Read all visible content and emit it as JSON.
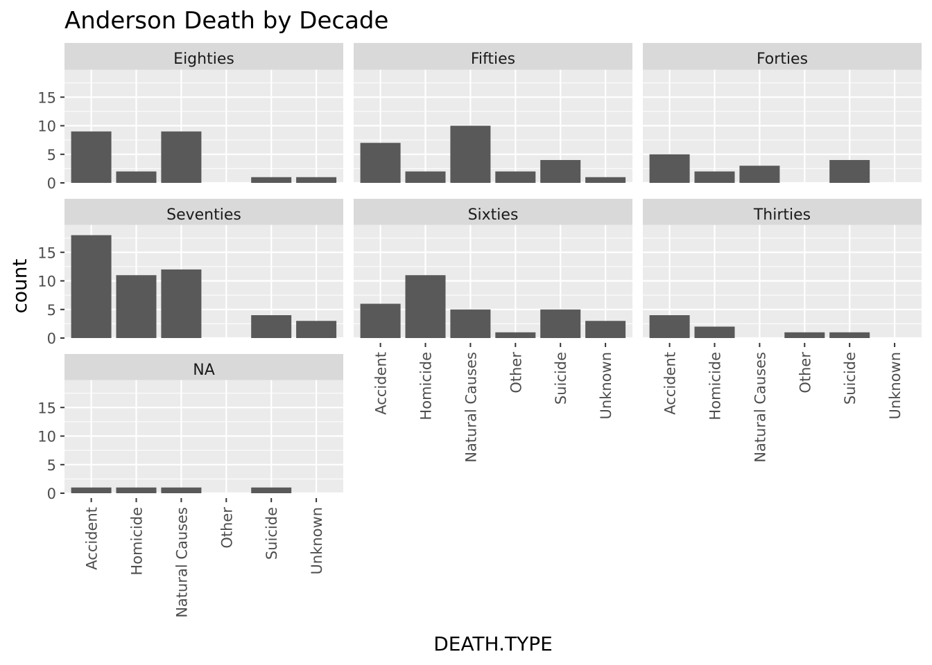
{
  "chart_data": {
    "type": "bar",
    "title": "Anderson Death by Decade",
    "xlabel": "DEATH.TYPE",
    "ylabel": "count",
    "categories": [
      "Accident",
      "Homicide",
      "Natural Causes",
      "Other",
      "Suicide",
      "Unknown"
    ],
    "y_ticks": [
      "0",
      "5",
      "10",
      "15"
    ],
    "ylim": [
      0,
      19.8
    ],
    "grid": true,
    "facets": [
      {
        "name": "Eighties",
        "values": [
          9,
          2,
          9,
          0,
          1,
          1
        ]
      },
      {
        "name": "Fifties",
        "values": [
          7,
          2,
          10,
          2,
          4,
          1
        ]
      },
      {
        "name": "Forties",
        "values": [
          5,
          2,
          3,
          0,
          4,
          0
        ]
      },
      {
        "name": "Seventies",
        "values": [
          18,
          11,
          12,
          0,
          4,
          3
        ]
      },
      {
        "name": "Sixties",
        "values": [
          6,
          11,
          5,
          1,
          5,
          3
        ]
      },
      {
        "name": "Thirties",
        "values": [
          4,
          2,
          0,
          1,
          1,
          0
        ]
      },
      {
        "name": "NA",
        "values": [
          1,
          1,
          1,
          0,
          1,
          0
        ]
      }
    ],
    "colors": {
      "bar": "#595959",
      "panel_background": "#ebebeb",
      "strip_background": "#d9d9d9",
      "grid": "#ffffff"
    }
  }
}
